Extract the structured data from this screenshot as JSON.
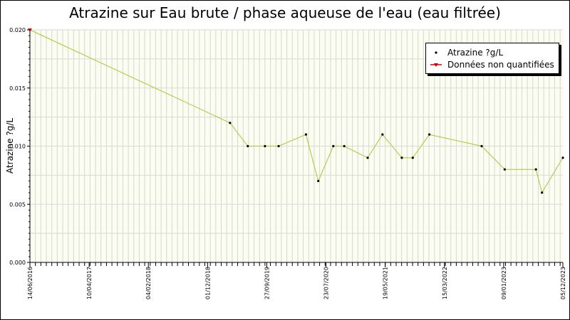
{
  "chart_data": {
    "type": "line",
    "title": "Atrazine sur Eau brute / phase aqueuse de l'eau (eau filtrée)",
    "ylabel": "Atrazine ?g/L",
    "xlabel": "",
    "ylim": [
      0,
      0.02
    ],
    "xlim": [
      "2016-06-14",
      "2023-12-05"
    ],
    "yticks": [
      "0.000",
      "0.005",
      "0.010",
      "0.015",
      "0.020"
    ],
    "xticks": [
      "14/06/2016",
      "10/04/2017",
      "04/02/2018",
      "01/12/2018",
      "27/09/2019",
      "23/07/2020",
      "19/05/2021",
      "15/03/2022",
      "09/01/2023",
      "05/12/2023"
    ],
    "grid": true,
    "legend_position": "top-right",
    "line_color": "#a8c832",
    "series": [
      {
        "name": "Atrazine ?g/L",
        "points": [
          [
            "2016-06-14",
            0.02
          ],
          [
            "2019-04-05",
            0.012
          ],
          [
            "2019-07-05",
            0.01
          ],
          [
            "2019-10-01",
            0.01
          ],
          [
            "2019-12-10",
            0.01
          ],
          [
            "2020-04-28",
            0.011
          ],
          [
            "2020-06-30",
            0.007
          ],
          [
            "2020-09-15",
            0.01
          ],
          [
            "2020-11-10",
            0.01
          ],
          [
            "2021-03-10",
            0.009
          ],
          [
            "2021-05-25",
            0.011
          ],
          [
            "2021-09-01",
            0.009
          ],
          [
            "2021-10-27",
            0.009
          ],
          [
            "2022-01-20",
            0.011
          ],
          [
            "2022-10-15",
            0.01
          ],
          [
            "2023-02-10",
            0.008
          ],
          [
            "2023-07-20",
            0.008
          ],
          [
            "2023-08-20",
            0.006
          ],
          [
            "2023-12-05",
            0.009
          ]
        ]
      },
      {
        "name": "Données non quantifiées",
        "points": [
          [
            "2016-06-14",
            0.02
          ]
        ]
      }
    ]
  }
}
